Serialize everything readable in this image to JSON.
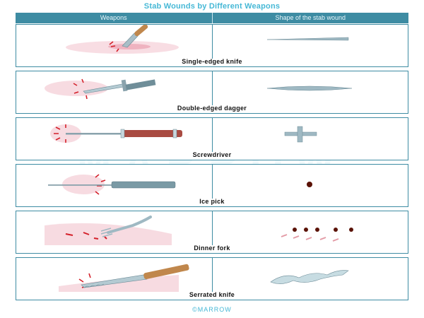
{
  "title": "Stab Wounds by Different Weapons",
  "header": {
    "col1": "Weapons",
    "col2": "Shape of the stab wound"
  },
  "rows": [
    {
      "label": "Single-edged knife"
    },
    {
      "label": "Double-edged dagger"
    },
    {
      "label": "Screwdriver"
    },
    {
      "label": "Ice pick"
    },
    {
      "label": "Dinner fork"
    },
    {
      "label": "Serrated knife"
    }
  ],
  "watermark": "MARROW",
  "footer": "©MARROW",
  "colors": {
    "accent": "#3e8ca3",
    "title": "#46b8d6",
    "blood": "#d4202a",
    "skin": "#f2c7cf",
    "handle_wood": "#c0874c",
    "handle_red": "#a94b42",
    "blade": "#9fb9c3"
  }
}
